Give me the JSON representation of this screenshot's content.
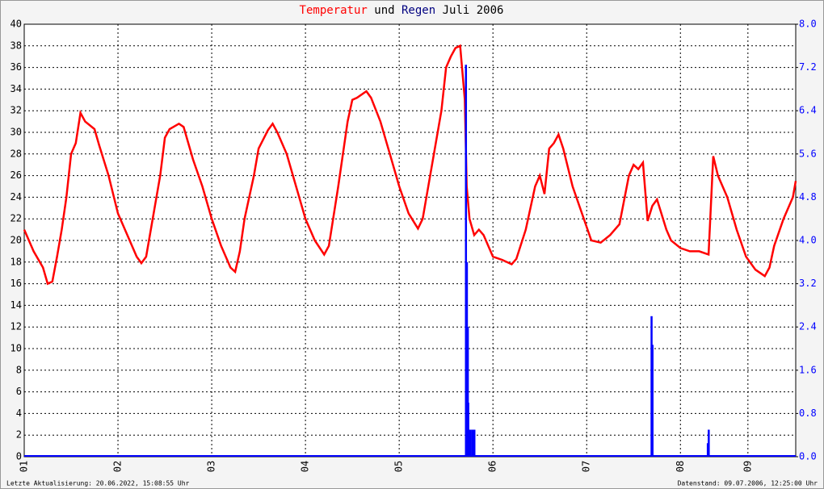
{
  "chart_data": {
    "type": "line",
    "title_joiner": "und",
    "title_suffix": "Juli 2006",
    "footer_left": "Letzte Aktualisierung: 20.06.2022, 15:08:55 Uhr",
    "footer_right": "Datenstand: 09.07.2006, 12:25:00 Uhr",
    "xlim": [
      1,
      9.23
    ],
    "xticks": [
      {
        "value": 1,
        "label": "01"
      },
      {
        "value": 2,
        "label": "02"
      },
      {
        "value": 3,
        "label": "03"
      },
      {
        "value": 4,
        "label": "04"
      },
      {
        "value": 5,
        "label": "05"
      },
      {
        "value": 6,
        "label": "06"
      },
      {
        "value": 7,
        "label": "07"
      },
      {
        "value": 8,
        "label": "08"
      },
      {
        "value": 8.72,
        "label": "09"
      }
    ],
    "ylim": [
      0,
      40
    ],
    "yticks": [
      0,
      2,
      4,
      6,
      8,
      10,
      12,
      14,
      16,
      18,
      20,
      22,
      24,
      26,
      28,
      30,
      32,
      34,
      36,
      38,
      40
    ],
    "y2lim": [
      0,
      8
    ],
    "y2ticks": [
      {
        "value": 0,
        "label": "0.0"
      },
      {
        "value": 0.8,
        "label": "0.8"
      },
      {
        "value": 1.6,
        "label": "1.6"
      },
      {
        "value": 2.4,
        "label": "2.4"
      },
      {
        "value": 3.2,
        "label": "3.2"
      },
      {
        "value": 4,
        "label": "4.0"
      },
      {
        "value": 4.8,
        "label": "4.8"
      },
      {
        "value": 5.6,
        "label": "5.6"
      },
      {
        "value": 6.4,
        "label": "6.4"
      },
      {
        "value": 7.2,
        "label": "7.2"
      },
      {
        "value": 8,
        "label": "8.0"
      }
    ],
    "grid": true,
    "series": [
      {
        "name": "Temperatur",
        "color": "#ff0000",
        "type": "line",
        "x": [
          1.0,
          1.1,
          1.2,
          1.25,
          1.3,
          1.35,
          1.4,
          1.45,
          1.5,
          1.55,
          1.6,
          1.65,
          1.75,
          1.8,
          1.9,
          2.0,
          2.1,
          2.2,
          2.25,
          2.3,
          2.35,
          2.45,
          2.5,
          2.55,
          2.65,
          2.7,
          2.8,
          2.9,
          3.0,
          3.1,
          3.2,
          3.25,
          3.3,
          3.35,
          3.45,
          3.5,
          3.6,
          3.65,
          3.7,
          3.8,
          3.9,
          4.0,
          4.1,
          4.2,
          4.25,
          4.35,
          4.45,
          4.5,
          4.55,
          4.65,
          4.7,
          4.8,
          4.9,
          5.0,
          5.1,
          5.2,
          5.25,
          5.35,
          5.45,
          5.5,
          5.55,
          5.6,
          5.65,
          5.7,
          5.72,
          5.75,
          5.8,
          5.85,
          5.9,
          6.0,
          6.1,
          6.2,
          6.25,
          6.35,
          6.45,
          6.5,
          6.55,
          6.6,
          6.65,
          6.7,
          6.75,
          6.85,
          6.95,
          7.05,
          7.15,
          7.25,
          7.35,
          7.45,
          7.5,
          7.55,
          7.6,
          7.65,
          7.7,
          7.75,
          7.85,
          7.9,
          8.0,
          8.1,
          8.2,
          8.3,
          8.35,
          8.4,
          8.5,
          8.6,
          8.7,
          8.8,
          8.9,
          8.95,
          9.0,
          9.1,
          9.2,
          9.23
        ],
        "values": [
          21,
          19,
          17.5,
          16,
          16.2,
          18.5,
          21,
          24,
          28,
          29,
          31.8,
          31,
          30.3,
          28.8,
          26,
          22.5,
          20.5,
          18.5,
          17.9,
          18.5,
          21,
          26,
          29.5,
          30.3,
          30.8,
          30.5,
          27.5,
          25,
          22,
          19.5,
          17.5,
          17.1,
          19,
          22,
          26,
          28.5,
          30.2,
          30.8,
          30,
          28,
          25,
          22,
          20,
          18.7,
          19.5,
          25,
          31,
          33,
          33.2,
          33.8,
          33.2,
          31,
          28,
          25,
          22.5,
          21.1,
          22,
          27,
          32,
          36,
          37,
          37.8,
          38,
          33,
          25,
          22,
          20.5,
          21,
          20.5,
          18.5,
          18.2,
          17.8,
          18.3,
          21,
          25,
          26,
          24.3,
          28.5,
          29,
          29.8,
          28.5,
          25,
          22.5,
          20,
          19.8,
          20.5,
          21.5,
          26,
          27,
          26.6,
          27.2,
          21.8,
          23.2,
          23.8,
          21,
          20,
          19.3,
          19,
          19,
          18.7,
          27.8,
          26,
          24,
          21,
          18.5,
          17.3,
          16.7,
          17.5,
          19.5,
          22,
          24,
          25.5
        ]
      },
      {
        "name": "Regen",
        "color": "#0000ff",
        "type": "bar",
        "axis": "y2",
        "x": [
          5.71,
          5.72,
          5.73,
          5.735,
          5.74,
          5.76,
          5.78,
          5.8,
          7.69,
          7.7,
          8.29,
          8.3
        ],
        "values": [
          7.25,
          3.6,
          2.4,
          1.0,
          0.5,
          0.5,
          0.5,
          0.5,
          2.6,
          2.07,
          0.25,
          0.5
        ]
      }
    ]
  }
}
